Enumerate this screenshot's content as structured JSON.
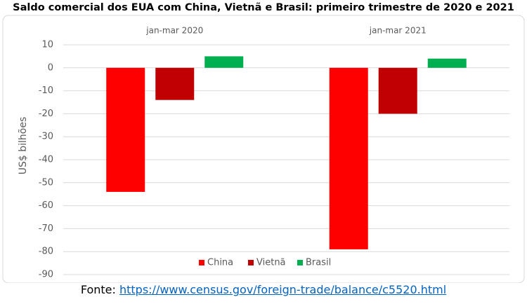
{
  "chart_data": {
    "type": "bar",
    "title": "Saldo comercial dos EUA com China, Vietnã e Brasil: primeiro trimestre de 2020 e 2021",
    "y_label": "US$ bilhões",
    "categories": [
      "jan-mar 2020",
      "jan-mar 2021"
    ],
    "series": [
      {
        "name": "China",
        "color": "#ff0000",
        "values": [
          -54,
          -79
        ]
      },
      {
        "name": "Vietnã",
        "color": "#c00000",
        "values": [
          -14,
          -20
        ]
      },
      {
        "name": "Brasil",
        "color": "#00b050",
        "values": [
          5,
          4
        ]
      }
    ],
    "ylim": [
      -90,
      10
    ],
    "yticks": [
      10,
      0,
      -10,
      -20,
      -30,
      -40,
      -50,
      -60,
      -70,
      -80,
      -90
    ],
    "grid": true,
    "legend": "bottom"
  },
  "footer": {
    "label": "Fonte:",
    "url": "https://www.census.gov/foreign-trade/balance/c5520.html"
  }
}
